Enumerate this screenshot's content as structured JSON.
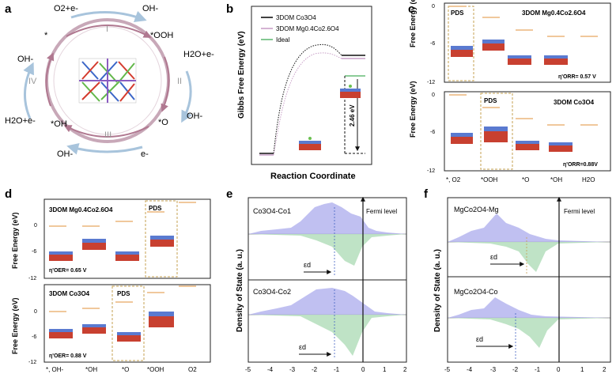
{
  "panels": {
    "a": {
      "letter": "a",
      "steps": [
        "I",
        "II",
        "III",
        "IV"
      ],
      "labels": {
        "o2e": "O2+e-",
        "oh_top": "OH-",
        "star": "*",
        "ooh": "*OOH",
        "h2oe_right": "H2O+e-",
        "oh_left": "OH-",
        "oh_right": "OH-",
        "h2oe_left": "H2O+e-",
        "star_oh": "*OH",
        "star_o": "*O",
        "oh_bottom": "OH-",
        "e_bottom": "e-"
      }
    },
    "b": {
      "letter": "b",
      "legend": [
        "3DOM Co3O4",
        "3DOM Mg0.4Co2.6O4",
        "Ideal"
      ],
      "ylabel": "Gibbs Free Energy (eV)",
      "xlabel": "Reaction Coordinate",
      "annotation": "2.46 eV"
    },
    "c": {
      "letter": "c",
      "top_title": "3DOM Mg0.4Co2.6O4",
      "bottom_title": "3DOM Co3O4",
      "pds": "PDS",
      "ylabel": "Free Energy (eV)",
      "yticks": [
        "0",
        "-6",
        "-12"
      ],
      "eta_top": "η'ORR= 0.57 V",
      "eta_bottom": "η'ORR=0.88V",
      "xticks": [
        "*, O2",
        "*OOH",
        "*O",
        "*OH",
        "H2O"
      ]
    },
    "d": {
      "letter": "d",
      "top_title": "3DOM Mg0.4Co2.6O4",
      "bottom_title": "3DOM Co3O4",
      "pds": "PDS",
      "ylabel": "Free Energy (eV)",
      "yticks": [
        "0",
        "-6",
        "-12"
      ],
      "eta_top": "η'OER= 0.65 V",
      "eta_bottom": "η'OER= 0.88 V",
      "xticks": [
        "*, OH-",
        "*OH",
        "*O",
        "*OOH",
        "O2"
      ]
    },
    "e": {
      "letter": "e",
      "top_label": "Co3O4-Co1",
      "bottom_label": "Co3O4-Co2",
      "fermi": "Fermi level",
      "ylabel": "Density of State (a. u.)",
      "eps": "εd",
      "xticks": [
        "-5",
        "-4",
        "-3",
        "-2",
        "-1",
        "0",
        "1",
        "2"
      ]
    },
    "f": {
      "letter": "f",
      "top_label": "MgCo2O4-Mg",
      "bottom_label": "MgCo2O4-Co",
      "fermi": "Fermi level",
      "ylabel": "Density of State (a. u.)",
      "eps": "εd",
      "xticks": [
        "-5",
        "-4",
        "-3",
        "-2",
        "-1",
        "0",
        "1",
        "2"
      ]
    }
  },
  "colors": {
    "co3o4": "#111111",
    "mg": "#c9a0c8",
    "ideal": "#66bb77",
    "orange": "#e8a860",
    "pds_box": "#c6a050",
    "dos_up": "#b0b0ee",
    "dos_down": "#b8e0c0",
    "cycle_ring": "#c8a8b8",
    "arrow_blue": "#a8c4dc"
  }
}
